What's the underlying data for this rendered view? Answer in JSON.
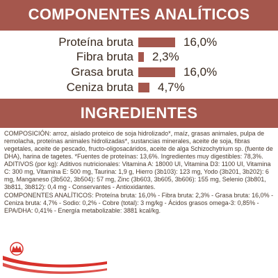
{
  "analytical_header": "COMPONENTES ANALÍTICOS",
  "ingredients_header": "INGREDIENTES",
  "components": [
    {
      "label": "Proteína bruta",
      "value": "16,0%",
      "amount": 16.0
    },
    {
      "label": "Fibra bruta",
      "value": "2,3%",
      "amount": 2.3
    },
    {
      "label": "Grasa bruta",
      "value": "16,0%",
      "amount": 16.0
    },
    {
      "label": "Ceniza bruta",
      "value": "4,7%",
      "amount": 4.7
    }
  ],
  "composition_text": "COMPOSICIÓN: arroz, aislado proteico de soja hidrolizado*, maíz, grasas animales, pulpa de remolacha, proteínas animales hidrolizadas*, sustancias minerales, aceite de soja, fibras vegetales, aceite de pescado, fructo-oligosacáridos, aceite de alga Schizochytrium sp. (fuente de DHA), harina de tagetes. *Fuentes de proteínas: 13,6%. Ingredientes muy digestibles: 78,3%.",
  "additives_text": "ADITIVOS (por kg): Aditivos nutricionales: Vitamina A: 18000 UI, Vitamina D3: 1100 UI, Vitamina C: 300 mg, Vitamina E: 500 mg, Taurina: 1,9 g, Hierro (3b103): 123 mg, Yodo (3b201, 3b202): 6 mg, Manganeso (3b502, 3b504): 57 mg, Zinc (3b603, 3b605, 3b606): 155 mg, Selenio (3b801, 3b811, 3b812): 0,4 mg - Conservantes - Antioxidantes.",
  "analytical_text": "COMPONENTES ANALÍTICOS: Proteína bruta: 16,0% - Fibra bruta: 2,3% - Grasa bruta: 16,0% - Ceniza bruta: 4,7% - Sodio: 0,2% - Cobre (total): 3 mg/kg - Ácidos grasos omega-3: 0,85% - EPA/DHA: 0,41% - Energía metabolizable: 3881 kcal/kg.",
  "colors": {
    "band": "#a5574d",
    "bar": "#a5574d",
    "text": "#3a2a1f",
    "logo_red": "#d8312b"
  }
}
